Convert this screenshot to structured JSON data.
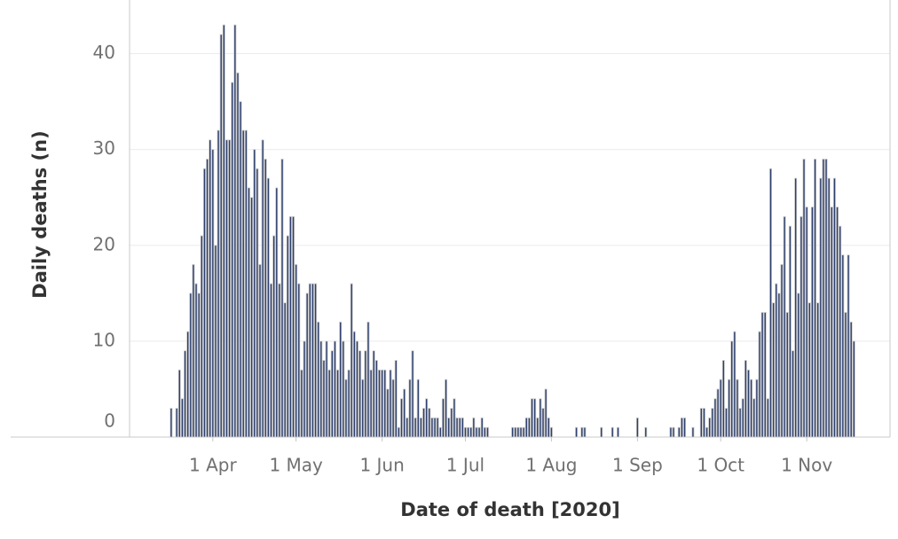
{
  "chart_data": {
    "type": "bar",
    "x_label": "Date of death [2020]",
    "y_label": "Daily deaths (n)",
    "color": "#2d3f6d",
    "outline": "#cccccc",
    "grid": true,
    "xlim": [
      62,
      336
    ],
    "ylim": [
      0,
      45.6
    ],
    "yticks": [
      0,
      10,
      20,
      30,
      40
    ],
    "xticks": [
      {
        "value": 92,
        "label": "1 Apr"
      },
      {
        "value": 122,
        "label": "1 May"
      },
      {
        "value": 153,
        "label": "1 Jun"
      },
      {
        "value": 183,
        "label": "1 Jul"
      },
      {
        "value": 214,
        "label": "1 Aug"
      },
      {
        "value": 245,
        "label": "1 Sep"
      },
      {
        "value": 275,
        "label": "1 Oct"
      },
      {
        "value": 306,
        "label": "1 Nov"
      }
    ],
    "x": [
      77,
      78,
      79,
      80,
      81,
      82,
      83,
      84,
      85,
      86,
      87,
      88,
      89,
      90,
      91,
      92,
      93,
      94,
      95,
      96,
      97,
      98,
      99,
      100,
      101,
      102,
      103,
      104,
      105,
      106,
      107,
      108,
      109,
      110,
      111,
      112,
      113,
      114,
      115,
      116,
      117,
      118,
      119,
      120,
      121,
      122,
      123,
      124,
      125,
      126,
      127,
      128,
      129,
      130,
      131,
      132,
      133,
      134,
      135,
      136,
      137,
      138,
      139,
      140,
      141,
      142,
      143,
      144,
      145,
      146,
      147,
      148,
      149,
      150,
      151,
      152,
      153,
      154,
      155,
      156,
      157,
      158,
      159,
      160,
      161,
      162,
      163,
      164,
      165,
      166,
      167,
      168,
      169,
      170,
      171,
      172,
      173,
      174,
      175,
      176,
      177,
      178,
      179,
      180,
      181,
      182,
      183,
      184,
      185,
      186,
      187,
      188,
      189,
      190,
      191,
      192,
      193,
      194,
      195,
      196,
      197,
      198,
      199,
      200,
      201,
      202,
      203,
      204,
      205,
      206,
      207,
      208,
      209,
      210,
      211,
      212,
      213,
      214,
      215,
      216,
      217,
      218,
      219,
      220,
      221,
      222,
      223,
      224,
      225,
      226,
      227,
      228,
      229,
      230,
      231,
      232,
      233,
      234,
      235,
      236,
      237,
      238,
      239,
      240,
      241,
      242,
      243,
      244,
      245,
      246,
      247,
      248,
      249,
      250,
      251,
      252,
      253,
      254,
      255,
      256,
      257,
      258,
      259,
      260,
      261,
      262,
      263,
      264,
      265,
      266,
      267,
      268,
      269,
      270,
      271,
      272,
      273,
      274,
      275,
      276,
      277,
      278,
      279,
      280,
      281,
      282,
      283,
      284,
      285,
      286,
      287,
      288,
      289,
      290,
      291,
      292,
      293,
      294,
      295,
      296,
      297,
      298,
      299,
      300,
      301,
      302,
      303,
      304,
      305,
      306,
      307,
      308,
      309,
      310,
      311,
      312,
      313,
      314,
      315,
      316,
      317,
      318,
      319,
      320,
      321,
      322,
      323
    ],
    "values": [
      3,
      0,
      3,
      7,
      4,
      9,
      11,
      15,
      18,
      16,
      15,
      21,
      28,
      29,
      31,
      30,
      20,
      32,
      42,
      43,
      31,
      31,
      37,
      43,
      38,
      35,
      32,
      32,
      26,
      25,
      30,
      28,
      18,
      31,
      29,
      27,
      16,
      21,
      26,
      16,
      29,
      14,
      21,
      23,
      23,
      18,
      16,
      7,
      10,
      15,
      16,
      16,
      16,
      12,
      10,
      8,
      10,
      7,
      9,
      10,
      7,
      12,
      10,
      6,
      7,
      16,
      11,
      10,
      9,
      6,
      9,
      12,
      7,
      9,
      8,
      7,
      7,
      7,
      5,
      7,
      6,
      8,
      1,
      4,
      5,
      2,
      6,
      9,
      2,
      6,
      2,
      3,
      4,
      3,
      2,
      2,
      2,
      1,
      4,
      6,
      2,
      3,
      4,
      2,
      2,
      2,
      1,
      1,
      1,
      2,
      1,
      1,
      2,
      1,
      1,
      0,
      0,
      0,
      0,
      0,
      0,
      0,
      0,
      1,
      1,
      1,
      1,
      1,
      2,
      2,
      4,
      4,
      2,
      4,
      3,
      5,
      2,
      1,
      0,
      0,
      0,
      0,
      0,
      0,
      0,
      0,
      1,
      0,
      1,
      1,
      0,
      0,
      0,
      0,
      0,
      1,
      0,
      0,
      0,
      1,
      0,
      1,
      0,
      0,
      0,
      0,
      0,
      0,
      2,
      0,
      0,
      1,
      0,
      0,
      0,
      0,
      0,
      0,
      0,
      0,
      1,
      1,
      0,
      1,
      2,
      2,
      0,
      0,
      1,
      0,
      0,
      3,
      3,
      1,
      2,
      3,
      4,
      5,
      6,
      8,
      3,
      6,
      10,
      11,
      6,
      3,
      4,
      8,
      7,
      6,
      4,
      6,
      11,
      13,
      13,
      4,
      28,
      14,
      16,
      15,
      18,
      23,
      13,
      22,
      9,
      27,
      15,
      23,
      29,
      24,
      14,
      24,
      29,
      14,
      27,
      29,
      29,
      27,
      24,
      27,
      24,
      22,
      19,
      13,
      19,
      12,
      10
    ]
  }
}
